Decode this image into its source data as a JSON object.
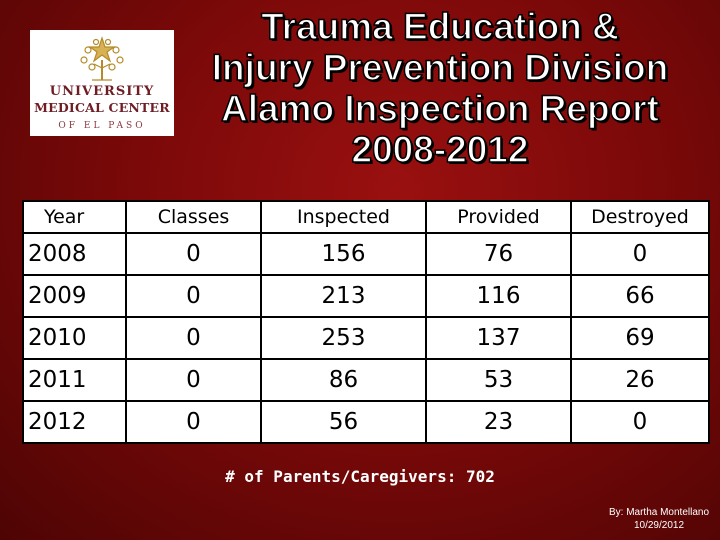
{
  "logo": {
    "line1": "UNIVERSITY",
    "line2": "MEDICAL CENTER",
    "line3": "OF EL PASO"
  },
  "title": {
    "line1": "Trauma Education &",
    "line2": "Injury Prevention Division",
    "line3": "Alamo Inspection Report",
    "line4": "2008-2012"
  },
  "table": {
    "headers": [
      "Year",
      "Classes",
      "Inspected",
      "Provided",
      "Destroyed"
    ],
    "rows": [
      [
        "2008",
        "0",
        "156",
        "76",
        "0"
      ],
      [
        "2009",
        "0",
        "213",
        "116",
        "66"
      ],
      [
        "2010",
        "0",
        "253",
        "137",
        "69"
      ],
      [
        "2011",
        "0",
        "86",
        "53",
        "26"
      ],
      [
        "2012",
        "0",
        "56",
        "23",
        "0"
      ]
    ]
  },
  "footer": {
    "parents": "# of Parents/Caregivers: 702",
    "credit_name": "By: Martha Montellano",
    "credit_date": "10/29/2012"
  },
  "colors": {
    "background": "#7c0909",
    "logo_text": "#6e1d24",
    "logo_gold": "#b58a2a"
  },
  "icons": [
    "tree-star-logo-icon"
  ]
}
